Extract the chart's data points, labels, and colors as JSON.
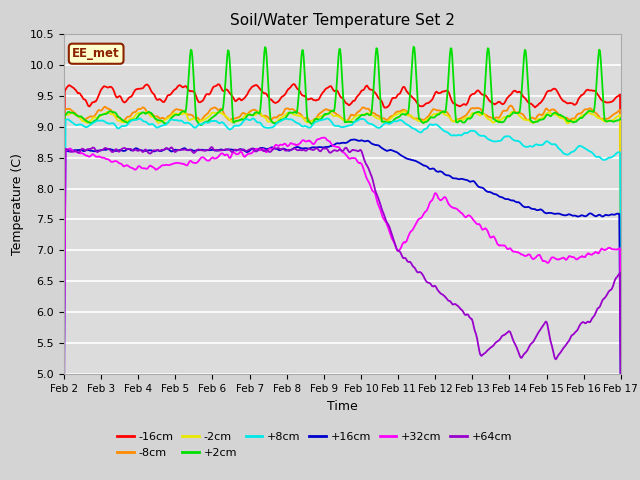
{
  "title": "Soil/Water Temperature Set 2",
  "xlabel": "Time",
  "ylabel": "Temperature (C)",
  "ylim": [
    5.0,
    10.5
  ],
  "xlim": [
    0,
    360
  ],
  "fig_bg": "#d4d4d4",
  "plot_bg": "#dcdcdc",
  "grid_color": "#ffffff",
  "annotation_text": "EE_met",
  "annotation_bg": "#ffffcc",
  "annotation_border": "#8B2200",
  "x_tick_labels": [
    "Feb 2",
    "Feb 3",
    "Feb 4",
    "Feb 5",
    "Feb 6",
    "Feb 7",
    "Feb 8",
    "Feb 9",
    "Feb 10",
    "Feb 11",
    "Feb 12",
    "Feb 13",
    "Feb 14",
    "Feb 15",
    "Feb 16",
    "Feb 17"
  ],
  "x_tick_positions": [
    0,
    24,
    48,
    72,
    96,
    120,
    144,
    168,
    192,
    216,
    240,
    264,
    288,
    312,
    336,
    360
  ],
  "series": [
    {
      "label": "-16cm",
      "color": "#ff0000"
    },
    {
      "label": "-8cm",
      "color": "#ff8c00"
    },
    {
      "label": "-2cm",
      "color": "#e8e800"
    },
    {
      "label": "+2cm",
      "color": "#00e000"
    },
    {
      "label": "+8cm",
      "color": "#00e8e8"
    },
    {
      "label": "+16cm",
      "color": "#0000cc"
    },
    {
      "label": "+32cm",
      "color": "#ff00ff"
    },
    {
      "label": "+64cm",
      "color": "#9900cc"
    }
  ],
  "n_points": 721
}
